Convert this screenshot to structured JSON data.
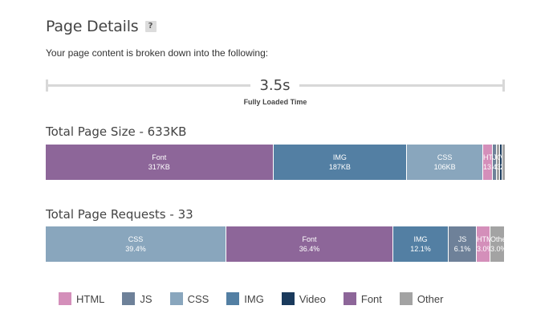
{
  "header": {
    "title": "Page Details",
    "help": "?",
    "intro": "Your page content is broken down into the following:"
  },
  "timeline": {
    "value": "3.5s",
    "label": "Fully Loaded Time"
  },
  "colors": {
    "HTML": "#d48fba",
    "JS": "#6e8199",
    "CSS": "#89a6bd",
    "IMG": "#537fa3",
    "Video": "#1a3a5c",
    "Font": "#8d6699",
    "Other": "#a3a3a3"
  },
  "size": {
    "title": "Total Page Size - 633KB",
    "segments": [
      {
        "type": "Font",
        "name": "Font",
        "value": "317KB",
        "share": 0.496
      },
      {
        "type": "IMG",
        "name": "IMG",
        "value": "187KB",
        "share": 0.292
      },
      {
        "type": "CSS",
        "name": "CSS",
        "value": "106KB",
        "share": 0.166
      },
      {
        "type": "HTML",
        "name": "HTML",
        "value": "13.6KB",
        "share": 0.021
      },
      {
        "type": "JS",
        "name": "JS",
        "value": "4.5KB",
        "share": 0.008
      },
      {
        "type": "Other",
        "name": "Other",
        "value": "3KB",
        "share": 0.007
      },
      {
        "type": "Video",
        "name": "Video",
        "value": "2KB",
        "share": 0.005
      },
      {
        "type": "Other",
        "name": "",
        "value": "",
        "share": 0.005
      }
    ]
  },
  "requests": {
    "title": "Total Page Requests - 33",
    "segments": [
      {
        "type": "CSS",
        "name": "CSS",
        "value": "39.4%",
        "share": 0.394
      },
      {
        "type": "Font",
        "name": "Font",
        "value": "36.4%",
        "share": 0.364
      },
      {
        "type": "IMG",
        "name": "IMG",
        "value": "12.1%",
        "share": 0.121
      },
      {
        "type": "JS",
        "name": "JS",
        "value": "6.1%",
        "share": 0.061
      },
      {
        "type": "HTML",
        "name": "HTML",
        "value": "3.0%",
        "share": 0.03
      },
      {
        "type": "Other",
        "name": "Other",
        "value": "3.0%",
        "share": 0.03
      }
    ]
  },
  "legend": [
    {
      "type": "HTML",
      "label": "HTML"
    },
    {
      "type": "JS",
      "label": "JS"
    },
    {
      "type": "CSS",
      "label": "CSS"
    },
    {
      "type": "IMG",
      "label": "IMG"
    },
    {
      "type": "Video",
      "label": "Video"
    },
    {
      "type": "Font",
      "label": "Font"
    },
    {
      "type": "Other",
      "label": "Other"
    }
  ]
}
